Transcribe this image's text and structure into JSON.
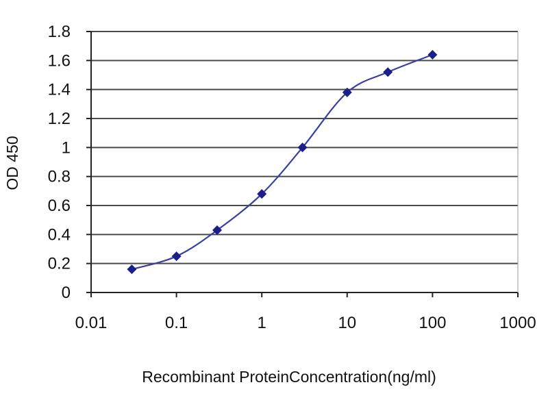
{
  "chart_data": {
    "type": "line",
    "xlabel": "Recombinant ProteinConcentration(ng/ml)",
    "ylabel": "OD 450",
    "x_scale": "log",
    "xlim": [
      0.01,
      1000
    ],
    "ylim": [
      0,
      1.8
    ],
    "x_ticks": [
      "0.01",
      "0.1",
      "1",
      "10",
      "100",
      "1000"
    ],
    "y_ticks": [
      "0",
      "0.2",
      "0.4",
      "0.6",
      "0.8",
      "1",
      "1.2",
      "1.4",
      "1.6",
      "1.8"
    ],
    "grid": true,
    "series": [
      {
        "x": [
          0.03,
          0.1,
          0.3,
          1,
          3,
          10,
          30,
          100
        ],
        "y": [
          0.16,
          0.25,
          0.43,
          0.68,
          1.0,
          1.38,
          1.52,
          1.64
        ]
      }
    ],
    "colors": {
      "line": "#3a3ea0",
      "marker": "#1a1f8a",
      "grid": "#4a4a4a",
      "axis": "#222222"
    }
  }
}
